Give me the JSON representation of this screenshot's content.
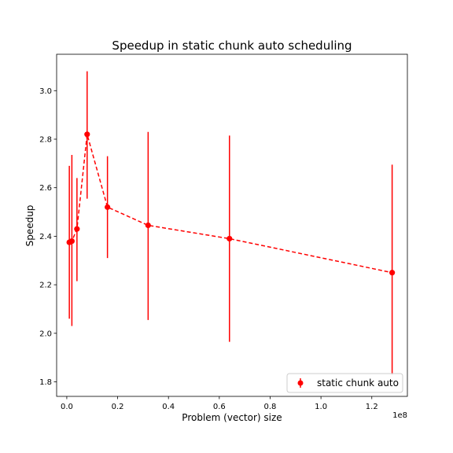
{
  "chart_data": {
    "type": "line",
    "title": "Speedup in static chunk auto scheduling",
    "xlabel": "Problem (vector) size",
    "ylabel": "Speedup",
    "x_offset_text": "1e8",
    "xlim": [
      -4000000,
      134000000
    ],
    "ylim": [
      1.74,
      3.15
    ],
    "x_ticks": [
      0,
      20000000,
      40000000,
      60000000,
      80000000,
      100000000,
      120000000
    ],
    "x_tick_labels": [
      "0.0",
      "0.2",
      "0.4",
      "0.6",
      "0.8",
      "1.0",
      "1.2"
    ],
    "y_ticks": [
      1.8,
      2.0,
      2.2,
      2.4,
      2.6,
      2.8,
      3.0
    ],
    "y_tick_labels": [
      "1.8",
      "2.0",
      "2.2",
      "2.4",
      "2.6",
      "2.8",
      "3.0"
    ],
    "grid": false,
    "legend_position": "lower-right",
    "series": [
      {
        "name": "static chunk auto",
        "color": "#ff0000",
        "line_style": "dashed",
        "marker": "circle",
        "points": [
          {
            "x": 1000000,
            "y": 2.375,
            "ylow": 2.06,
            "yhigh": 2.69
          },
          {
            "x": 2000000,
            "y": 2.38,
            "ylow": 2.03,
            "yhigh": 2.735
          },
          {
            "x": 4000000,
            "y": 2.43,
            "ylow": 2.215,
            "yhigh": 2.64
          },
          {
            "x": 8000000,
            "y": 2.82,
            "ylow": 2.555,
            "yhigh": 3.08
          },
          {
            "x": 16000000,
            "y": 2.52,
            "ylow": 2.31,
            "yhigh": 2.73
          },
          {
            "x": 32000000,
            "y": 2.445,
            "ylow": 2.055,
            "yhigh": 2.83
          },
          {
            "x": 64000000,
            "y": 2.39,
            "ylow": 1.965,
            "yhigh": 2.815
          },
          {
            "x": 128000000,
            "y": 2.25,
            "ylow": 1.83,
            "yhigh": 2.695
          }
        ]
      }
    ]
  }
}
